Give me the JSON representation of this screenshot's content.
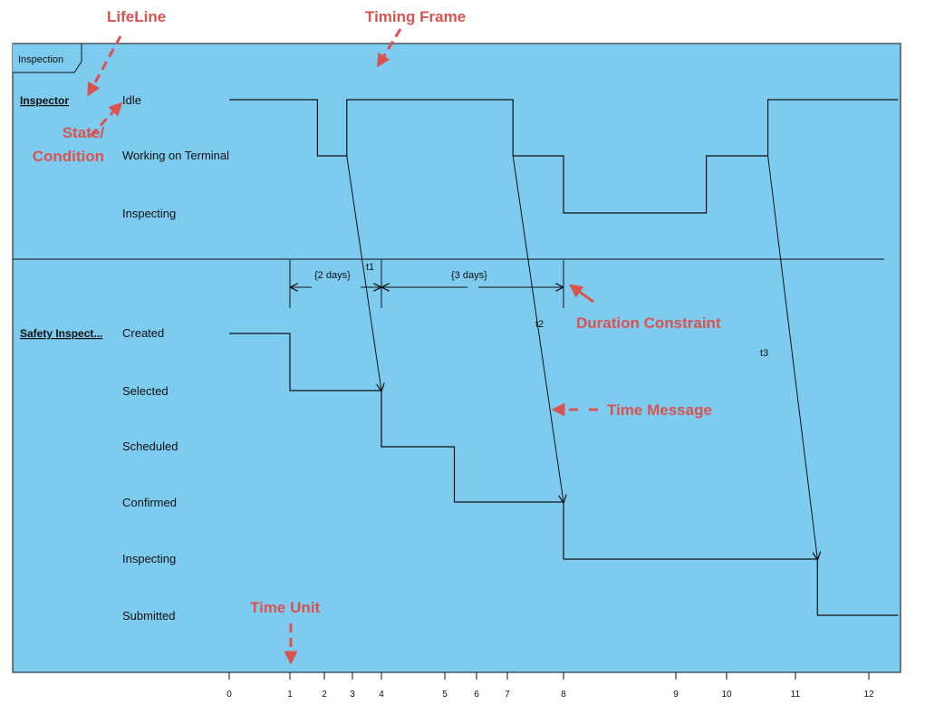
{
  "frame": {
    "name": "Inspection",
    "background": "#7dcbef",
    "annotation_color": "#d9534f"
  },
  "lifelines": [
    {
      "name": "Inspector",
      "states": [
        "Idle",
        "Working on Terminal",
        "Inspecting"
      ]
    },
    {
      "name": "Safety Inspect...",
      "states": [
        "Created",
        "Selected",
        "Scheduled",
        "Confirmed",
        "Inspecting",
        "Submitted"
      ]
    }
  ],
  "time_axis": {
    "ticks": [
      "0",
      "1",
      "2",
      "3",
      "4",
      "5",
      "6",
      "7",
      "8",
      "9",
      "10",
      "11",
      "12"
    ]
  },
  "timelines": {
    "inspector": [
      [
        0,
        0
      ],
      [
        1.8,
        0
      ],
      [
        1.8,
        1
      ],
      [
        2.8,
        1
      ],
      [
        2.8,
        0
      ],
      [
        7.1,
        0
      ],
      [
        7.1,
        1
      ],
      [
        8,
        1
      ],
      [
        8,
        2
      ],
      [
        9.6,
        2
      ],
      [
        9.6,
        1
      ],
      [
        10.6,
        1
      ],
      [
        10.6,
        0
      ],
      [
        12.4,
        0
      ]
    ],
    "safety_inspection": [
      [
        0,
        0
      ],
      [
        1,
        0
      ],
      [
        1,
        1
      ],
      [
        4,
        1
      ],
      [
        4,
        2
      ],
      [
        5.3,
        2
      ],
      [
        5.3,
        3
      ],
      [
        8,
        3
      ],
      [
        8,
        4
      ],
      [
        11.3,
        4
      ],
      [
        11.3,
        5
      ],
      [
        12.4,
        5
      ]
    ]
  },
  "messages": [
    {
      "name": "t1",
      "from": 2.8,
      "to": 4
    },
    {
      "name": "t2",
      "from": 7.1,
      "to": 8
    },
    {
      "name": "t3",
      "from": 10.6,
      "to": 11.3
    }
  ],
  "duration_constraints": [
    {
      "label": "{2 days}",
      "start": 1,
      "end": 4
    },
    {
      "label": "{3 days}",
      "start": 4,
      "end": 8
    }
  ],
  "annotations": {
    "lifeline": "LifeLine",
    "timing_frame": "Timing Frame",
    "state_line1": "State/",
    "state_line2": "Condition",
    "duration_constraint": "Duration Constraint",
    "time_message": "Time Message",
    "time_unit": "Time Unit"
  }
}
